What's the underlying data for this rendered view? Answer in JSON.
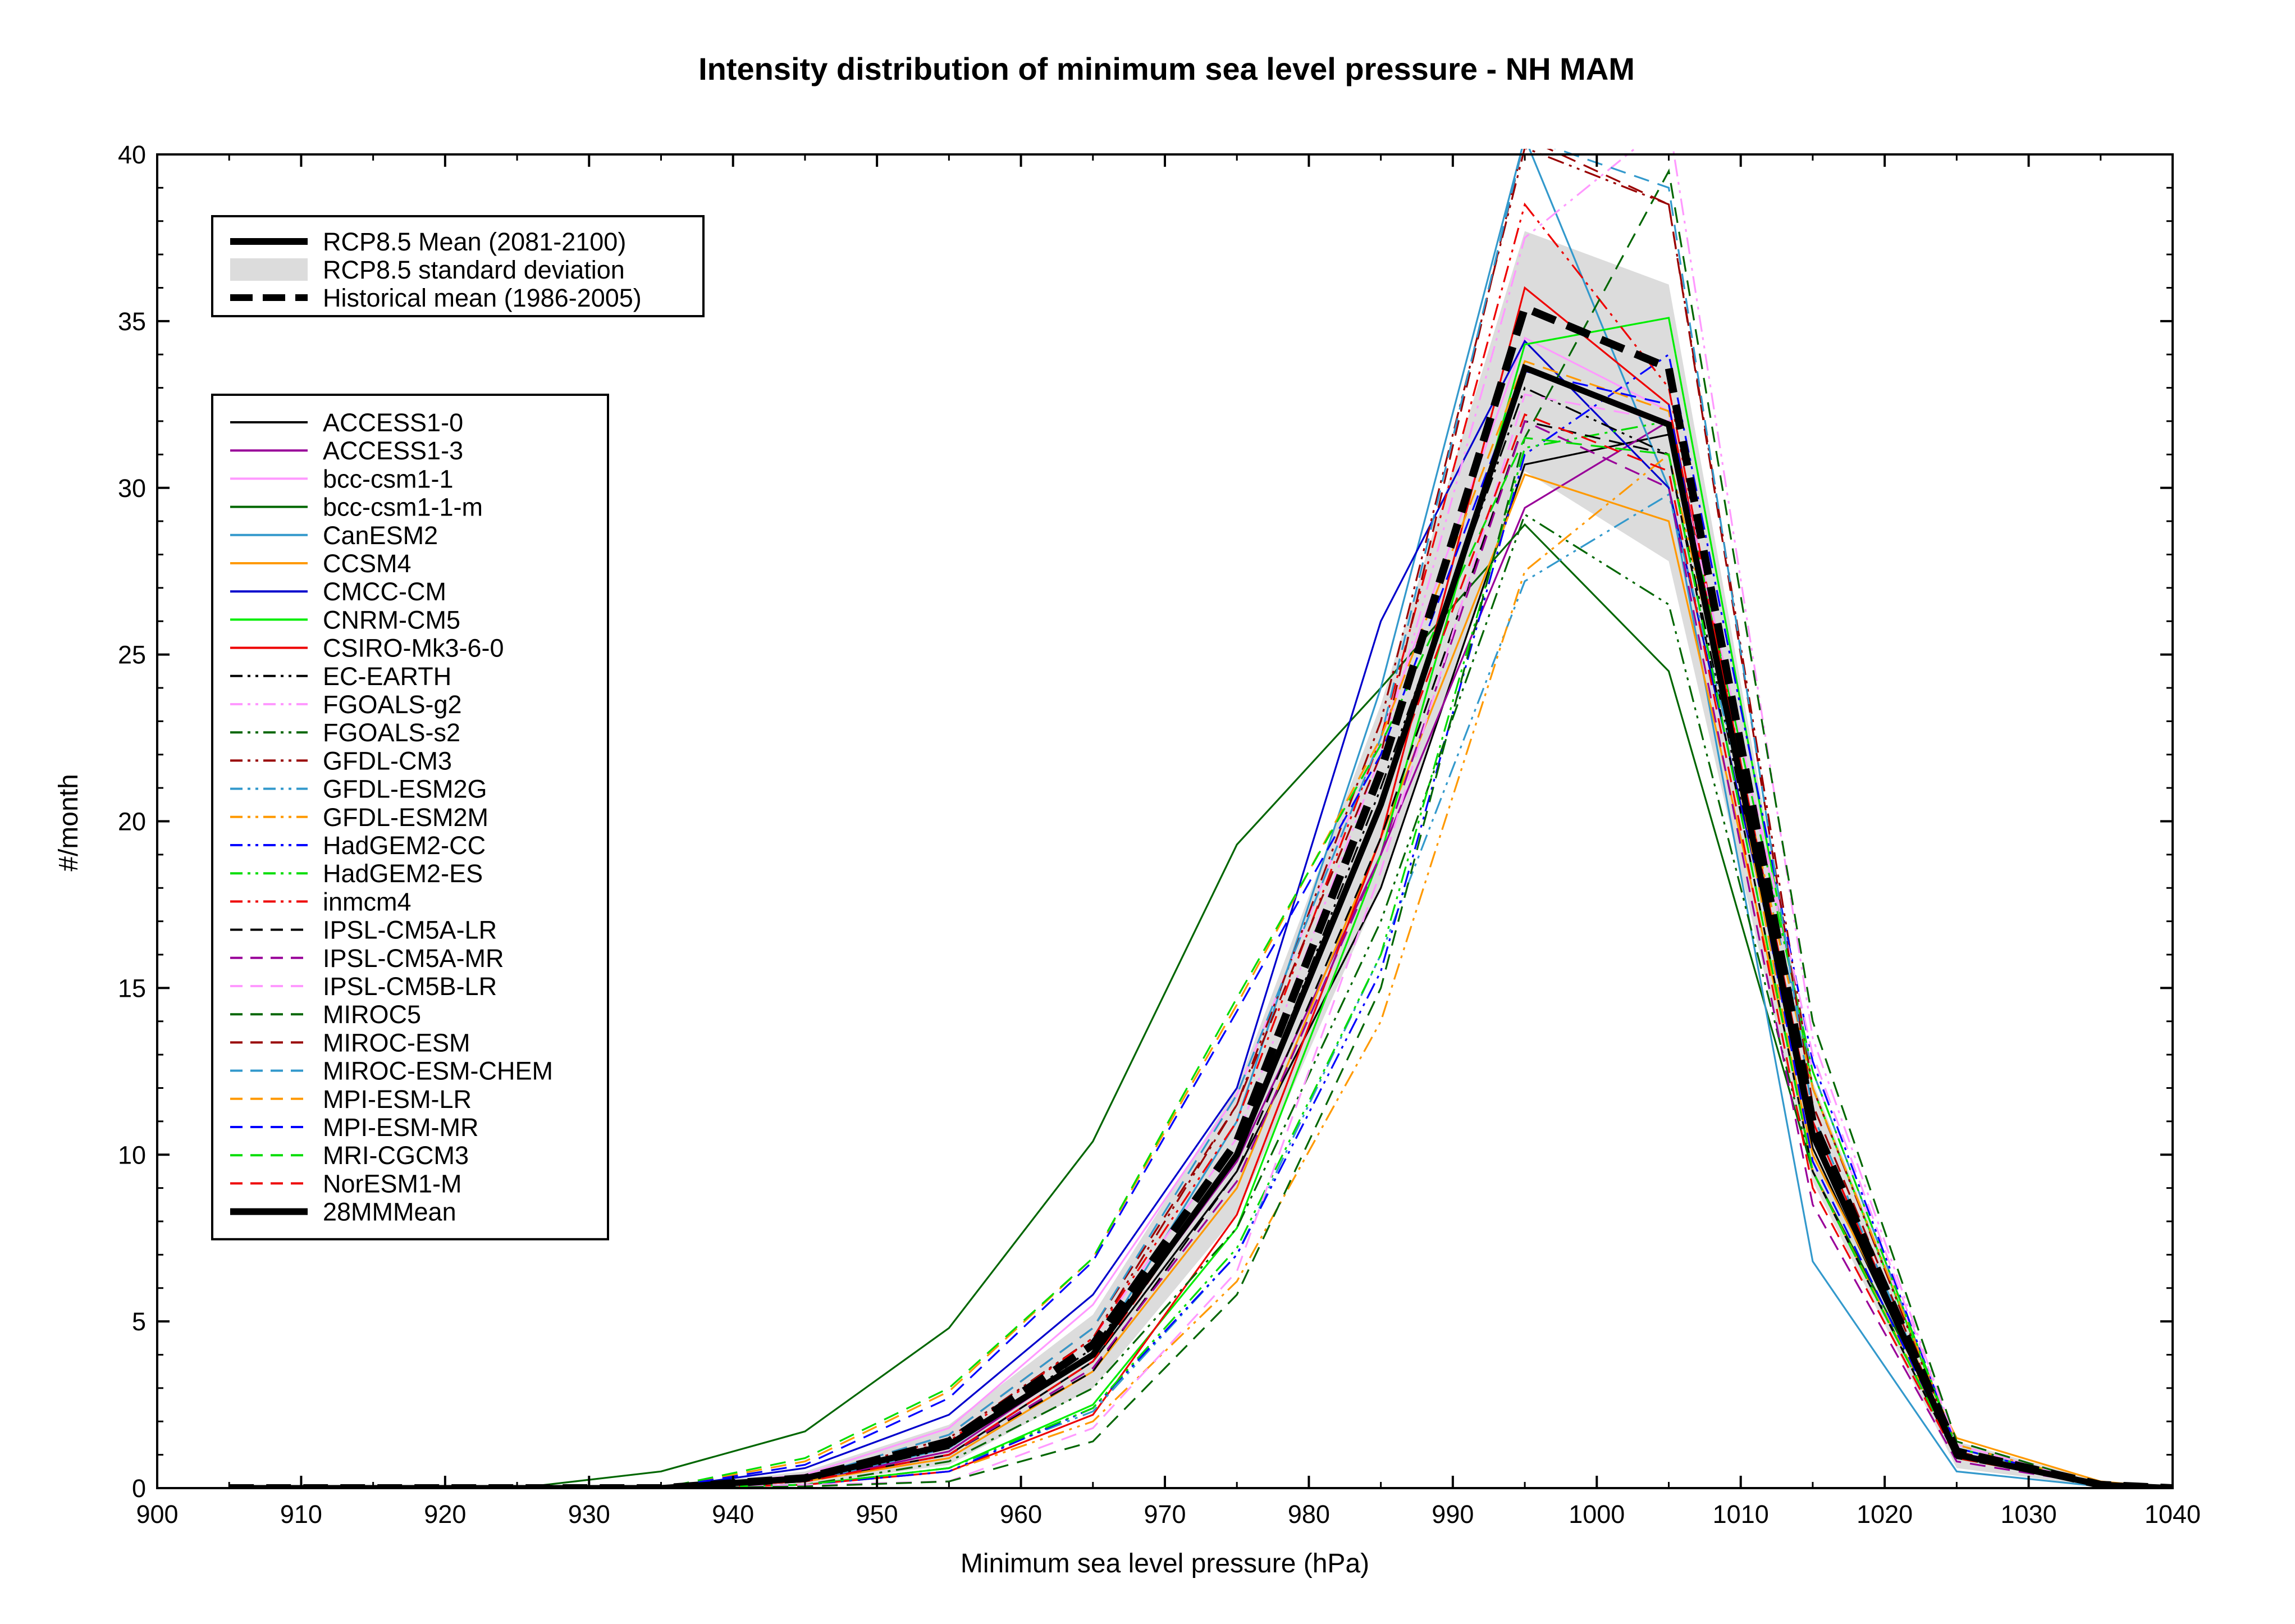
{
  "chart_data": {
    "type": "line",
    "title": "Intensity distribution of minimum sea level pressure - NH MAM",
    "xlabel": "Minimum sea level pressure (hPa)",
    "ylabel": "#/month",
    "xlim": [
      900,
      1040
    ],
    "ylim": [
      0,
      40
    ],
    "x_ticks": [
      "900",
      "910",
      "920",
      "930",
      "940",
      "950",
      "960",
      "970",
      "980",
      "990",
      "1000",
      "1010",
      "1020",
      "1030",
      "1040"
    ],
    "y_ticks": [
      "0",
      "5",
      "10",
      "15",
      "20",
      "25",
      "30",
      "35",
      "40"
    ],
    "grid": false,
    "x": [
      905,
      915,
      925,
      935,
      945,
      955,
      965,
      975,
      985,
      995,
      1005,
      1015,
      1025,
      1035,
      1040
    ],
    "summary_legend": [
      {
        "name": "RCP8.5 Mean (2081-2100)",
        "style": "solid-thick"
      },
      {
        "name": "RCP8.5 standard deviation",
        "style": "band"
      },
      {
        "name": "Historical mean (1986-2005)",
        "style": "dashed-thick"
      }
    ],
    "rcp85_mean": [
      0,
      0,
      0,
      0,
      0.3,
      1.3,
      4.0,
      10.0,
      20.5,
      33.6,
      31.9,
      10.6,
      1.0,
      0.1,
      0
    ],
    "rcp85_std_lower": [
      0,
      0,
      0,
      0,
      0.1,
      0.7,
      3.0,
      8.2,
      18.0,
      30.5,
      27.8,
      9.2,
      0.6,
      0.05,
      0
    ],
    "rcp85_std_upper": [
      0,
      0,
      0,
      0.05,
      0.5,
      1.9,
      5.2,
      12.0,
      23.5,
      37.7,
      36.1,
      12.2,
      1.4,
      0.2,
      0.05
    ],
    "historical_mean": [
      0,
      0,
      0,
      0,
      0.3,
      1.4,
      4.3,
      10.4,
      21.5,
      35.4,
      33.6,
      11.0,
      1.1,
      0.1,
      0
    ],
    "series": [
      {
        "name": "ACCESS1-0",
        "color": "#000000",
        "dash": "solid",
        "values": [
          0,
          0,
          0,
          0,
          0.2,
          1.0,
          3.8,
          9.5,
          18.0,
          30.7,
          31.6,
          10.2,
          1.0,
          0.1,
          0
        ]
      },
      {
        "name": "ACCESS1-3",
        "color": "#990099",
        "dash": "solid",
        "values": [
          0,
          0,
          0,
          0,
          0.2,
          1.1,
          4.0,
          9.8,
          19.0,
          29.4,
          32.0,
          10.5,
          1.0,
          0.1,
          0
        ]
      },
      {
        "name": "bcc-csm1-1",
        "color": "#ff99ff",
        "dash": "solid",
        "values": [
          0,
          0,
          0,
          0,
          0.4,
          1.8,
          5.5,
          11.8,
          22.5,
          34.5,
          32.3,
          12.5,
          1.2,
          0.1,
          0
        ]
      },
      {
        "name": "bcc-csm1-1-m",
        "color": "#006600",
        "dash": "solid",
        "values": [
          0,
          0,
          0,
          0.5,
          1.7,
          4.8,
          10.4,
          19.3,
          24.0,
          28.9,
          24.5,
          9.5,
          1.3,
          0.1,
          0
        ]
      },
      {
        "name": "CanESM2",
        "color": "#3399cc",
        "dash": "solid",
        "values": [
          0,
          0,
          0,
          0,
          0.2,
          1.2,
          4.0,
          11.0,
          24.0,
          40.5,
          30.0,
          6.8,
          0.5,
          0.05,
          0
        ]
      },
      {
        "name": "CCSM4",
        "color": "#ff9900",
        "dash": "solid",
        "values": [
          0,
          0,
          0,
          0,
          0.2,
          0.9,
          3.5,
          9.0,
          19.5,
          30.4,
          29.0,
          10.0,
          1.5,
          0.2,
          0
        ]
      },
      {
        "name": "CMCC-CM",
        "color": "#0000cc",
        "dash": "solid",
        "values": [
          0,
          0,
          0,
          0,
          0.6,
          2.2,
          5.8,
          12.0,
          26.0,
          34.4,
          30.0,
          11.0,
          1.0,
          0.1,
          0
        ]
      },
      {
        "name": "CNRM-CM5",
        "color": "#00ee00",
        "dash": "solid",
        "values": [
          0,
          0,
          0,
          0,
          0.1,
          0.6,
          2.5,
          7.8,
          19.0,
          34.3,
          35.1,
          12.0,
          1.2,
          0.1,
          0
        ]
      },
      {
        "name": "CSIRO-Mk3-6-0",
        "color": "#ee0000",
        "dash": "solid",
        "values": [
          0,
          0,
          0,
          0,
          0.1,
          0.5,
          2.2,
          8.2,
          19.5,
          36.0,
          32.5,
          11.0,
          1.0,
          0.1,
          0
        ]
      },
      {
        "name": "EC-EARTH",
        "color": "#000000",
        "dash": "dashdotdot",
        "values": [
          0,
          0,
          0,
          0,
          0.2,
          1.2,
          4.2,
          10.0,
          21.0,
          33.0,
          31.0,
          10.5,
          1.0,
          0.1,
          0
        ]
      },
      {
        "name": "FGOALS-g2",
        "color": "#ff99ff",
        "dash": "dashdotdot",
        "values": [
          0,
          0,
          0,
          0,
          0.3,
          1.4,
          4.5,
          10.5,
          22.0,
          37.5,
          41.0,
          13.5,
          1.3,
          0.1,
          0
        ]
      },
      {
        "name": "FGOALS-s2",
        "color": "#006600",
        "dash": "dashdotdot",
        "values": [
          0,
          0,
          0,
          0,
          0.1,
          0.8,
          3.0,
          7.8,
          17.0,
          29.2,
          26.5,
          9.5,
          1.0,
          0.1,
          0
        ]
      },
      {
        "name": "GFDL-CM3",
        "color": "#990000",
        "dash": "dashdotdot",
        "values": [
          0,
          0,
          0,
          0,
          0.3,
          1.5,
          4.5,
          11.5,
          23.0,
          40.2,
          38.5,
          12.0,
          1.1,
          0.1,
          0
        ]
      },
      {
        "name": "GFDL-ESM2G",
        "color": "#3399cc",
        "dash": "dashdotdot",
        "values": [
          0,
          0,
          0,
          0,
          0.1,
          0.6,
          2.3,
          7.0,
          16.0,
          27.2,
          29.8,
          12.5,
          1.2,
          0.1,
          0
        ]
      },
      {
        "name": "GFDL-ESM2M",
        "color": "#ff9900",
        "dash": "dashdotdot",
        "values": [
          0,
          0,
          0,
          0,
          0.1,
          0.5,
          2.0,
          6.2,
          14.0,
          27.5,
          31.0,
          12.0,
          1.3,
          0.1,
          0
        ]
      },
      {
        "name": "HadGEM2-CC",
        "color": "#0000ff",
        "dash": "dashdotdot",
        "values": [
          0,
          0,
          0,
          0,
          0.1,
          0.5,
          2.4,
          7.0,
          15.5,
          31.0,
          34.0,
          12.8,
          1.2,
          0.1,
          0
        ]
      },
      {
        "name": "HadGEM2-ES",
        "color": "#00dd00",
        "dash": "dashdotdot",
        "values": [
          0,
          0,
          0,
          0,
          0.1,
          0.6,
          2.4,
          7.2,
          16.0,
          31.2,
          32.0,
          12.5,
          1.2,
          0.1,
          0
        ]
      },
      {
        "name": "inmcm4",
        "color": "#ee0000",
        "dash": "dashdotdot",
        "values": [
          0,
          0,
          0,
          0,
          0.3,
          1.4,
          4.5,
          11.0,
          22.5,
          38.5,
          33.0,
          10.5,
          1.0,
          0.1,
          0
        ]
      },
      {
        "name": "IPSL-CM5A-LR",
        "color": "#000000",
        "dash": "dashed",
        "values": [
          0,
          0,
          0,
          0,
          0.2,
          1.0,
          3.5,
          9.5,
          19.5,
          32.0,
          31.0,
          9.5,
          0.9,
          0.1,
          0
        ]
      },
      {
        "name": "IPSL-CM5A-MR",
        "color": "#990099",
        "dash": "dashed",
        "values": [
          0,
          0,
          0,
          0,
          0.2,
          1.0,
          3.6,
          9.2,
          19.0,
          32.0,
          30.0,
          8.5,
          0.8,
          0.1,
          0
        ]
      },
      {
        "name": "IPSL-CM5B-LR",
        "color": "#ff99ff",
        "dash": "dashed",
        "values": [
          0,
          0,
          0,
          0,
          0.1,
          0.2,
          1.8,
          6.5,
          18.5,
          32.8,
          32.0,
          13.0,
          1.3,
          0.1,
          0
        ]
      },
      {
        "name": "MIROC5",
        "color": "#006600",
        "dash": "dashed",
        "values": [
          0,
          0,
          0,
          0,
          0.05,
          0.2,
          1.4,
          5.8,
          15.0,
          31.5,
          39.5,
          14.0,
          1.4,
          0.1,
          0
        ]
      },
      {
        "name": "MIROC-ESM",
        "color": "#990000",
        "dash": "dashed",
        "values": [
          0,
          0,
          0,
          0,
          0.3,
          1.6,
          4.8,
          11.5,
          22.0,
          40.5,
          38.5,
          11.5,
          1.0,
          0.1,
          0
        ]
      },
      {
        "name": "MIROC-ESM-CHEM",
        "color": "#3399cc",
        "dash": "dashed",
        "values": [
          0,
          0,
          0,
          0,
          0.3,
          1.6,
          4.8,
          11.8,
          22.5,
          40.5,
          39.0,
          11.2,
          1.0,
          0.1,
          0
        ]
      },
      {
        "name": "MPI-ESM-LR",
        "color": "#ff9900",
        "dash": "dashed",
        "values": [
          0,
          0,
          0,
          0,
          0.8,
          2.9,
          6.9,
          14.5,
          22.5,
          33.8,
          32.3,
          9.5,
          1.0,
          0.1,
          0
        ]
      },
      {
        "name": "MPI-ESM-MR",
        "color": "#0000ff",
        "dash": "dashed",
        "values": [
          0,
          0,
          0,
          0,
          0.7,
          2.7,
          6.8,
          14.3,
          22.0,
          33.5,
          32.5,
          9.8,
          1.0,
          0.1,
          0
        ]
      },
      {
        "name": "MRI-CGCM3",
        "color": "#00dd00",
        "dash": "dashed",
        "values": [
          0,
          0,
          0,
          0,
          0.9,
          3.0,
          6.9,
          14.7,
          22.3,
          31.5,
          31.0,
          9.5,
          0.9,
          0.1,
          0
        ]
      },
      {
        "name": "NorESM1-M",
        "color": "#ee0000",
        "dash": "dashed",
        "values": [
          0,
          0,
          0,
          0,
          0.2,
          1.0,
          3.8,
          10.0,
          20.5,
          32.2,
          30.5,
          9.0,
          0.9,
          0.1,
          0
        ]
      }
    ],
    "model_legend_extra": "28MMMean",
    "legend_placement": "upper-left"
  }
}
